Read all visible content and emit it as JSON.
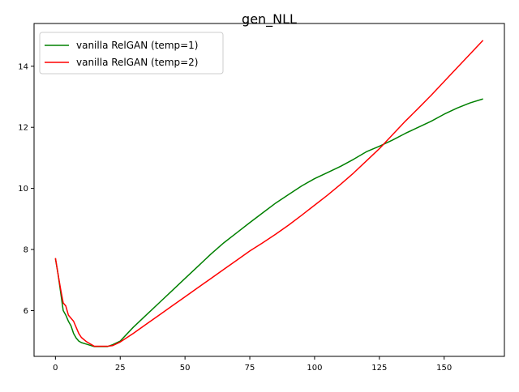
{
  "chart_data": {
    "type": "line",
    "title": "gen_NLL",
    "xlabel": "",
    "ylabel": "",
    "xlim": [
      -8.25,
      173.25
    ],
    "ylim": [
      4.5,
      15.4
    ],
    "xticks": [
      0,
      25,
      50,
      75,
      100,
      125,
      150
    ],
    "yticks": [
      6,
      8,
      10,
      12,
      14
    ],
    "grid": false,
    "legend": {
      "position": "top-left"
    },
    "series": [
      {
        "name": "vanilla RelGAN (temp=1)",
        "color": "#008000",
        "x": [
          0,
          1,
          2,
          3,
          4,
          5,
          6,
          7,
          8,
          9,
          10,
          12,
          15,
          20,
          22,
          25,
          30,
          35,
          40,
          45,
          50,
          55,
          60,
          65,
          70,
          75,
          80,
          85,
          90,
          95,
          100,
          105,
          110,
          115,
          120,
          125,
          130,
          135,
          140,
          145,
          150,
          155,
          160,
          165
        ],
        "y": [
          7.7,
          7.2,
          6.6,
          6.0,
          5.85,
          5.65,
          5.5,
          5.25,
          5.1,
          5.0,
          4.95,
          4.9,
          4.82,
          4.82,
          4.88,
          5.0,
          5.45,
          5.85,
          6.25,
          6.65,
          7.05,
          7.45,
          7.85,
          8.22,
          8.55,
          8.88,
          9.2,
          9.52,
          9.8,
          10.08,
          10.32,
          10.52,
          10.72,
          10.95,
          11.2,
          11.38,
          11.58,
          11.8,
          12.0,
          12.2,
          12.43,
          12.63,
          12.8,
          12.93
        ]
      },
      {
        "name": "vanilla RelGAN (temp=2)",
        "color": "#ff0000",
        "x": [
          0,
          1,
          2,
          3,
          4,
          5,
          6,
          7,
          8,
          9,
          10,
          12,
          15,
          20,
          22,
          25,
          30,
          35,
          40,
          45,
          50,
          55,
          60,
          65,
          70,
          75,
          80,
          85,
          90,
          95,
          100,
          105,
          110,
          115,
          120,
          125,
          130,
          135,
          140,
          145,
          150,
          155,
          160,
          165
        ],
        "y": [
          7.72,
          7.2,
          6.7,
          6.25,
          6.15,
          5.85,
          5.75,
          5.65,
          5.45,
          5.25,
          5.12,
          4.98,
          4.83,
          4.83,
          4.85,
          4.97,
          5.25,
          5.55,
          5.85,
          6.15,
          6.45,
          6.75,
          7.05,
          7.35,
          7.65,
          7.95,
          8.22,
          8.5,
          8.8,
          9.12,
          9.45,
          9.78,
          10.13,
          10.5,
          10.9,
          11.3,
          11.75,
          12.2,
          12.62,
          13.05,
          13.5,
          13.95,
          14.4,
          14.85
        ]
      }
    ]
  }
}
